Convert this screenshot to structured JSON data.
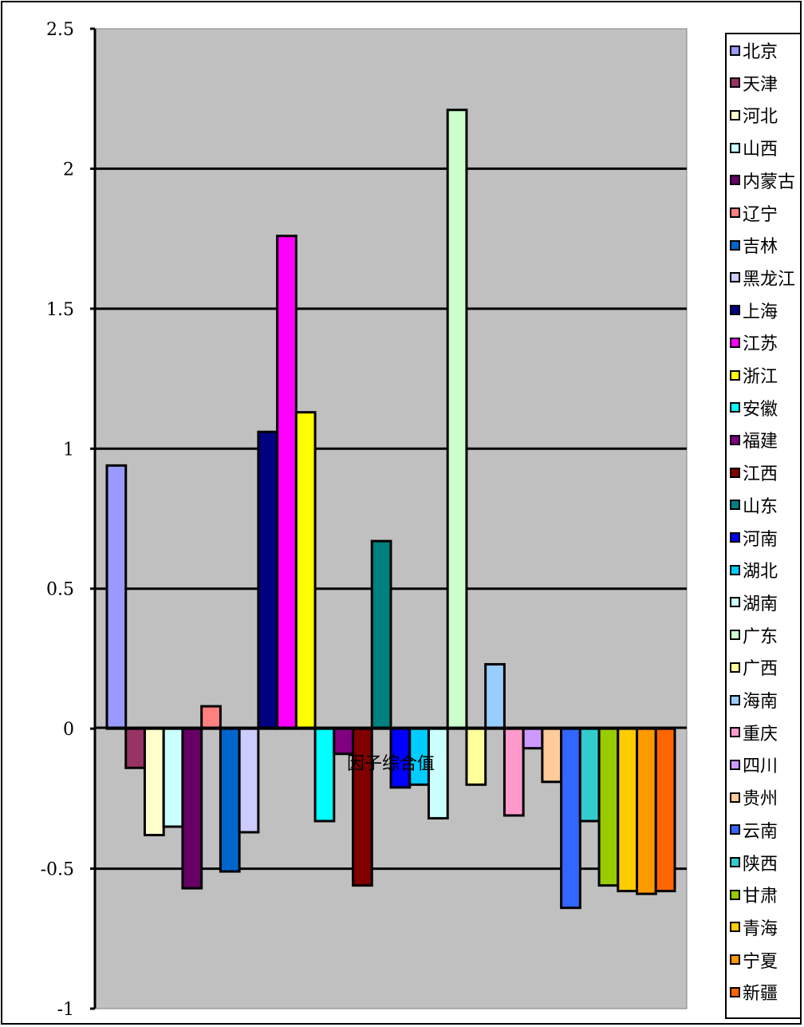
{
  "chart_data": {
    "type": "bar",
    "title": "",
    "xlabel": "",
    "ylabel": "",
    "category_label": "因子综合值",
    "ylim": [
      -1,
      2.5
    ],
    "yticks": [
      "2.5",
      "2",
      "1.5",
      "1",
      "0.5",
      "0",
      "-0.5",
      "-1"
    ],
    "ytick_values": [
      2.5,
      2,
      1.5,
      1,
      0.5,
      0,
      -0.5,
      -1
    ],
    "grid": true,
    "legend_position": "right",
    "series": [
      {
        "name": "北京",
        "value": 0.94,
        "color": "#9999FF"
      },
      {
        "name": "天津",
        "value": -0.14,
        "color": "#993366"
      },
      {
        "name": "河北",
        "value": -0.38,
        "color": "#FFFFCC"
      },
      {
        "name": "山西",
        "value": -0.35,
        "color": "#CCFFFF"
      },
      {
        "name": "内蒙古",
        "value": -0.57,
        "color": "#660066"
      },
      {
        "name": "辽宁",
        "value": 0.08,
        "color": "#FF8080"
      },
      {
        "name": "吉林",
        "value": -0.51,
        "color": "#0066CC"
      },
      {
        "name": "黑龙江",
        "value": -0.37,
        "color": "#CCCCFF"
      },
      {
        "name": "上海",
        "value": 1.06,
        "color": "#000080"
      },
      {
        "name": "江苏",
        "value": 1.76,
        "color": "#FF00FF"
      },
      {
        "name": "浙江",
        "value": 1.13,
        "color": "#FFFF00"
      },
      {
        "name": "安徽",
        "value": -0.33,
        "color": "#00FFFF"
      },
      {
        "name": "福建",
        "value": -0.09,
        "color": "#800080"
      },
      {
        "name": "江西",
        "value": -0.56,
        "color": "#800000"
      },
      {
        "name": "山东",
        "value": 0.67,
        "color": "#008080"
      },
      {
        "name": "河南",
        "value": -0.21,
        "color": "#0000FF"
      },
      {
        "name": "湖北",
        "value": -0.2,
        "color": "#00CCFF"
      },
      {
        "name": "湖南",
        "value": -0.32,
        "color": "#CCFFFF"
      },
      {
        "name": "广东",
        "value": 2.21,
        "color": "#CCFFCC"
      },
      {
        "name": "广西",
        "value": -0.2,
        "color": "#FFFF99"
      },
      {
        "name": "海南",
        "value": 0.23,
        "color": "#99CCFF"
      },
      {
        "name": "重庆",
        "value": -0.31,
        "color": "#FF99CC"
      },
      {
        "name": "四川",
        "value": -0.07,
        "color": "#CC99FF"
      },
      {
        "name": "贵州",
        "value": -0.19,
        "color": "#FFCC99"
      },
      {
        "name": "云南",
        "value": -0.64,
        "color": "#3366FF"
      },
      {
        "name": "陕西",
        "value": -0.33,
        "color": "#33CCCC"
      },
      {
        "name": "甘肃",
        "value": -0.56,
        "color": "#99CC00"
      },
      {
        "name": "青海",
        "value": -0.58,
        "color": "#FFCC00"
      },
      {
        "name": "宁夏",
        "value": -0.59,
        "color": "#FF9900"
      },
      {
        "name": "新疆",
        "value": -0.58,
        "color": "#FF6600"
      }
    ]
  }
}
